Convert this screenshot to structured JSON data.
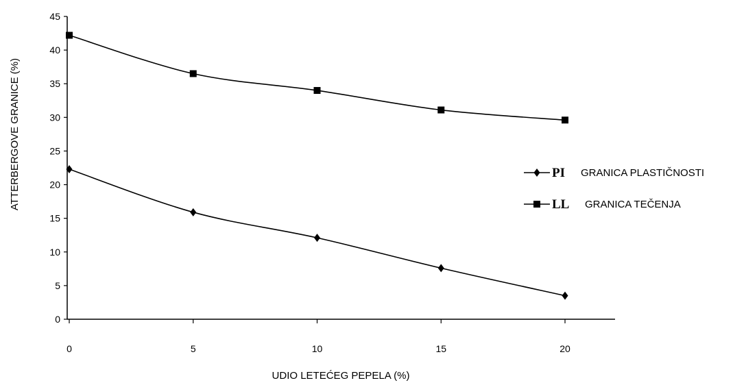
{
  "chart_data": {
    "type": "line",
    "x": [
      0,
      5,
      10,
      15,
      20
    ],
    "xticks": [
      "0",
      "5",
      "10",
      "15",
      "20"
    ],
    "yticks": [
      "0",
      "5",
      "10",
      "15",
      "20",
      "25",
      "30",
      "35",
      "40",
      "45"
    ],
    "xlim": [
      0,
      22
    ],
    "ylim": [
      0,
      45
    ],
    "xlabel": "UDIO LETEĆEG PEPELA (%)",
    "ylabel": "ATTERBERGOVE GRANICE (%)",
    "grid": false,
    "legend_position": "right",
    "series": [
      {
        "code": "PI",
        "name": "GRANICA PLASTIČNOSTI",
        "marker": "diamond",
        "color": "#000000",
        "values": [
          22.3,
          15.9,
          12.1,
          7.6,
          3.5
        ]
      },
      {
        "code": "LL",
        "name": "GRANICA TEČENJA",
        "marker": "square",
        "color": "#000000",
        "values": [
          42.2,
          36.5,
          34.0,
          31.1,
          29.6
        ]
      }
    ]
  }
}
